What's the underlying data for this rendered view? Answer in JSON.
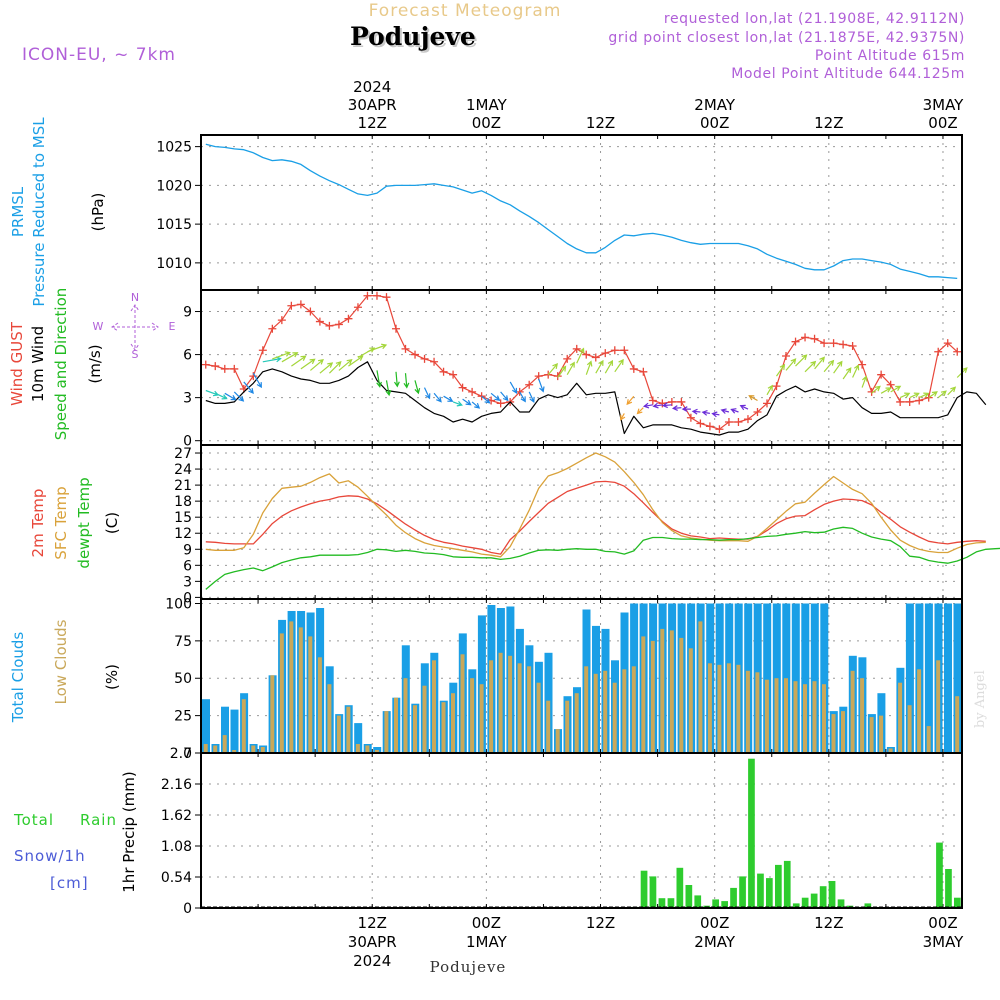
{
  "header": {
    "top_title": "Forecast Meteogram",
    "location": "Podujeve",
    "model": "ICON-EU, ~ 7km",
    "requested": "requested lon,lat (21.1908E, 42.9112N)",
    "grid_point": "grid point closest lon,lat (21.1875E, 42.9375N)",
    "point_alt": "Point Altitude 615m",
    "model_alt": "Model Point Altitude 644.125m",
    "bottom_name": "Podujeve",
    "watermark": "by Angel"
  },
  "colors": {
    "pressure": "#1a9fe6",
    "gust": "#e8473a",
    "wind10m": "#000000",
    "wind_dir": "#22bb22",
    "t2m": "#e8473a",
    "sfc": "#d9a23a",
    "dew": "#22bb22",
    "total_clouds": "#1a9fe6",
    "low_clouds": "#c9a85a",
    "rain": "#2ecc2e",
    "snow": "#4b5bd6",
    "header_purple": "#b05fd8",
    "header_tan": "#e8c98a"
  },
  "time_axis": {
    "year": "2024",
    "top_ticks": [
      {
        "t": 18,
        "l1": "2024",
        "l2": "30APR",
        "l3": "12Z"
      },
      {
        "t": 30,
        "l1": "",
        "l2": "1MAY",
        "l3": "00Z"
      },
      {
        "t": 42,
        "l1": "",
        "l2": "",
        "l3": "12Z"
      },
      {
        "t": 54,
        "l1": "",
        "l2": "2MAY",
        "l3": "00Z"
      },
      {
        "t": 66,
        "l1": "",
        "l2": "",
        "l3": "12Z"
      },
      {
        "t": 78,
        "l1": "",
        "l2": "3MAY",
        "l3": "00Z"
      }
    ],
    "bottom_ticks": [
      {
        "t": 18,
        "l1": "12Z",
        "l2": "30APR",
        "l3": "2024"
      },
      {
        "t": 30,
        "l1": "00Z",
        "l2": "1MAY",
        "l3": ""
      },
      {
        "t": 42,
        "l1": "12Z",
        "l2": "",
        "l3": ""
      },
      {
        "t": 54,
        "l1": "00Z",
        "l2": "2MAY",
        "l3": ""
      },
      {
        "t": 66,
        "l1": "12Z",
        "l2": "",
        "l3": ""
      },
      {
        "t": 78,
        "l1": "00Z",
        "l2": "3MAY",
        "l3": ""
      }
    ]
  },
  "chart_data": [
    {
      "type": "line",
      "panel": "pressure",
      "label_side": [
        "PRMSL",
        "Pressure Reduced to MSL"
      ],
      "ylabel": "(hPa)",
      "ylim": [
        1006.5,
        1026.5
      ],
      "yticks": [
        1010,
        1015,
        1020,
        1025
      ],
      "series": [
        {
          "name": "PRMSL",
          "values": [
            1025.3,
            1025.0,
            1024.9,
            1024.7,
            1024.6,
            1024.2,
            1023.6,
            1023.2,
            1023.3,
            1023.1,
            1022.7,
            1021.9,
            1021.2,
            1020.6,
            1020.1,
            1019.5,
            1018.9,
            1018.7,
            1019.0,
            1019.9,
            1020.0,
            1020.0,
            1020.0,
            1020.1,
            1020.2,
            1020.0,
            1019.8,
            1019.4,
            1019.0,
            1019.3,
            1018.7,
            1018.0,
            1017.5,
            1016.7,
            1016.0,
            1015.2,
            1014.3,
            1013.4,
            1012.5,
            1011.8,
            1011.3,
            1011.3,
            1012.0,
            1012.9,
            1013.6,
            1013.5,
            1013.7,
            1013.8,
            1013.6,
            1013.3,
            1012.9,
            1012.6,
            1012.4,
            1012.5,
            1012.5,
            1012.5,
            1012.5,
            1012.2,
            1011.8,
            1011.1,
            1010.6,
            1010.2,
            1009.8,
            1009.3,
            1009.1,
            1009.1,
            1009.6,
            1010.3,
            1010.5,
            1010.5,
            1010.3,
            1010.1,
            1009.8,
            1009.2,
            1008.9,
            1008.6,
            1008.2,
            1008.2,
            1008.1,
            1008.0
          ]
        }
      ]
    },
    {
      "type": "line",
      "panel": "wind",
      "label_side": [
        "Wind GUST",
        "10m Wind",
        "Speed and Direction"
      ],
      "ylabel": "(m/s)",
      "compass": {
        "n": "N",
        "s": "S",
        "w": "W",
        "e": "E"
      },
      "ylim": [
        -0.3,
        10.5
      ],
      "yticks": [
        0,
        3,
        6,
        9
      ],
      "series": [
        {
          "name": "Wind GUST",
          "values": [
            5.3,
            5.2,
            5.0,
            5.0,
            3.6,
            4.5,
            6.3,
            7.8,
            8.4,
            9.4,
            9.5,
            9.0,
            8.3,
            8.0,
            8.1,
            8.5,
            9.3,
            10.1,
            10.1,
            10.0,
            7.8,
            6.4,
            6.0,
            5.7,
            5.5,
            4.8,
            4.6,
            3.7,
            3.4,
            3.1,
            2.8,
            2.6,
            2.7,
            3.4,
            3.9,
            4.5,
            4.6,
            4.5,
            5.7,
            6.4,
            6.0,
            5.8,
            6.1,
            6.3,
            6.3,
            5.0,
            4.8,
            2.8,
            2.6,
            2.7,
            2.7,
            1.6,
            1.2,
            1.0,
            0.8,
            1.3,
            1.3,
            1.5,
            2.0,
            2.6,
            3.8,
            5.9,
            6.9,
            7.2,
            7.1,
            6.8,
            6.8,
            6.7,
            6.6,
            5.3,
            3.4,
            4.6,
            3.9,
            2.7,
            2.7,
            2.8,
            3.0,
            6.2,
            6.8,
            6.2
          ]
        },
        {
          "name": "10m Wind",
          "values": [
            2.8,
            2.6,
            2.6,
            2.7,
            3.4,
            4.0,
            4.8,
            5.0,
            4.8,
            4.5,
            4.3,
            4.2,
            4.0,
            4.0,
            4.2,
            4.5,
            5.1,
            5.5,
            4.2,
            3.5,
            3.4,
            3.3,
            2.8,
            2.3,
            1.9,
            1.7,
            1.3,
            1.5,
            1.3,
            1.7,
            1.9,
            2.0,
            2.7,
            2.0,
            2.0,
            2.9,
            3.2,
            3.0,
            3.2,
            4.0,
            3.2,
            3.3,
            3.3,
            3.4,
            0.5,
            1.7,
            0.9,
            1.1,
            1.1,
            1.1,
            0.9,
            0.8,
            0.6,
            0.5,
            0.4,
            0.6,
            0.6,
            0.8,
            1.4,
            1.8,
            3.1,
            3.5,
            3.8,
            3.4,
            3.6,
            3.4,
            3.3,
            2.9,
            3.0,
            2.3,
            1.9,
            1.9,
            2.0,
            1.6,
            1.6,
            1.6,
            1.6,
            1.6,
            1.8,
            3.0,
            3.4,
            3.3,
            2.5
          ]
        }
      ],
      "direction_from_deg": [
        290,
        295,
        300,
        315,
        320,
        330,
        260,
        250,
        240,
        235,
        235,
        230,
        230,
        225,
        230,
        235,
        240,
        250,
        350,
        350,
        355,
        355,
        345,
        335,
        320,
        300,
        290,
        305,
        310,
        310,
        310,
        320,
        330,
        330,
        335,
        340,
        220,
        215,
        210,
        205,
        200,
        210,
        210,
        215,
        30,
        40,
        45,
        80,
        80,
        85,
        85,
        90,
        95,
        100,
        100,
        105,
        110,
        115,
        120,
        210,
        215,
        220,
        225,
        225,
        220,
        220,
        215,
        215,
        205,
        200,
        230,
        240,
        240,
        245,
        245,
        245,
        235,
        230,
        225,
        225
      ]
    },
    {
      "type": "line",
      "panel": "temperature",
      "label_side": [
        "2m Temp",
        "SFC Temp",
        "dewpt Temp"
      ],
      "ylabel": "(C)",
      "ylim": [
        -0.3,
        28.5
      ],
      "yticks": [
        0,
        3,
        6,
        9,
        12,
        15,
        18,
        21,
        24,
        27
      ],
      "series": [
        {
          "name": "2m Temp",
          "values": [
            10.4,
            10.3,
            10.1,
            10.0,
            10.0,
            10.0,
            11.8,
            13.8,
            15.2,
            16.2,
            16.9,
            17.5,
            18.0,
            18.3,
            18.8,
            19.0,
            18.9,
            18.4,
            17.5,
            16.3,
            15.0,
            13.7,
            12.6,
            11.6,
            10.8,
            10.3,
            10.0,
            9.6,
            9.3,
            9.0,
            8.4,
            8.1,
            10.8,
            12.4,
            14.2,
            15.9,
            17.6,
            18.7,
            19.8,
            20.4,
            21.0,
            21.6,
            21.7,
            21.5,
            20.8,
            19.4,
            17.7,
            15.9,
            14.2,
            12.8,
            12.0,
            11.5,
            11.3,
            11.0,
            11.1,
            11.0,
            10.9,
            10.9,
            11.4,
            12.5,
            13.8,
            14.7,
            15.2,
            15.3,
            16.4,
            17.4,
            18.0,
            18.4,
            18.3,
            18.1,
            17.3,
            15.9,
            14.6,
            13.2,
            12.2,
            11.3,
            10.5,
            10.2,
            10.0,
            10.3,
            10.5,
            10.6,
            10.5
          ]
        },
        {
          "name": "SFC Temp",
          "values": [
            9.0,
            8.8,
            8.8,
            8.8,
            9.3,
            11.8,
            15.8,
            18.5,
            20.4,
            20.6,
            20.8,
            21.5,
            22.4,
            23.1,
            21.4,
            21.8,
            20.6,
            18.9,
            17.1,
            15.4,
            13.5,
            12.1,
            11.0,
            10.2,
            9.7,
            9.4,
            9.1,
            8.8,
            8.5,
            8.1,
            7.9,
            7.6,
            9.5,
            12.8,
            16.3,
            20.4,
            22.7,
            23.3,
            24.1,
            25.1,
            26.1,
            27.0,
            26.3,
            25.3,
            23.5,
            21.5,
            19.2,
            16.4,
            14.0,
            12.5,
            11.5,
            11.1,
            10.9,
            10.7,
            10.6,
            10.6,
            10.6,
            10.5,
            11.4,
            12.9,
            14.5,
            16.1,
            17.5,
            17.8,
            19.5,
            21.1,
            22.6,
            21.4,
            20.2,
            19.4,
            17.6,
            15.0,
            12.6,
            10.7,
            9.7,
            9.0,
            8.6,
            8.4,
            8.4,
            9.2,
            9.9,
            10.2,
            10.3
          ]
        },
        {
          "name": "dewpt Temp",
          "values": [
            1.5,
            3.0,
            4.3,
            4.8,
            5.2,
            5.5,
            5.0,
            5.7,
            6.5,
            7.0,
            7.4,
            7.6,
            7.9,
            7.9,
            7.9,
            7.9,
            8.0,
            8.4,
            9.0,
            8.9,
            8.6,
            8.8,
            8.6,
            8.3,
            8.2,
            8.0,
            7.6,
            7.5,
            7.5,
            7.4,
            7.4,
            7.1,
            7.3,
            7.7,
            8.3,
            8.8,
            8.9,
            8.8,
            9.0,
            9.1,
            9.0,
            9.0,
            8.6,
            8.5,
            8.1,
            8.7,
            10.7,
            11.2,
            11.2,
            11.0,
            10.9,
            10.9,
            10.8,
            10.8,
            10.7,
            10.8,
            10.8,
            11.0,
            11.2,
            11.4,
            11.5,
            11.8,
            12.0,
            12.3,
            12.1,
            12.2,
            12.8,
            13.1,
            12.9,
            12.0,
            11.3,
            10.9,
            10.6,
            9.5,
            7.7,
            7.5,
            6.9,
            6.6,
            6.4,
            6.8,
            7.5,
            8.5,
            9.0,
            9.1,
            9.2
          ]
        }
      ]
    },
    {
      "type": "bar",
      "panel": "clouds",
      "label_side": [
        "Total Clouds",
        "Low Clouds"
      ],
      "ylabel": "(%)",
      "ylim": [
        0,
        103
      ],
      "yticks": [
        0,
        25,
        50,
        75,
        100
      ],
      "series": [
        {
          "name": "Total Clouds",
          "values": [
            36,
            6,
            31,
            29,
            40,
            6,
            5,
            52,
            89,
            95,
            95,
            94,
            97,
            58,
            26,
            32,
            20,
            6,
            4,
            28,
            37,
            72,
            33,
            60,
            67,
            35,
            47,
            80,
            56,
            92,
            99,
            97,
            98,
            83,
            72,
            61,
            67,
            16,
            38,
            44,
            96,
            85,
            83,
            62,
            94,
            100,
            100,
            100,
            100,
            100,
            100,
            100,
            100,
            100,
            100,
            100,
            100,
            100,
            100,
            100,
            100,
            100,
            100,
            100,
            100,
            100,
            28,
            31,
            65,
            64,
            26,
            40,
            4,
            57,
            100,
            100,
            100,
            100,
            100,
            100
          ]
        },
        {
          "name": "Low Clouds",
          "values": [
            6,
            5,
            12,
            2,
            36,
            5,
            4,
            52,
            80,
            88,
            84,
            78,
            64,
            46,
            25,
            31,
            6,
            5,
            2,
            28,
            37,
            50,
            32,
            45,
            62,
            34,
            40,
            66,
            50,
            46,
            62,
            67,
            65,
            60,
            58,
            47,
            35,
            16,
            35,
            40,
            58,
            53,
            55,
            47,
            56,
            58,
            78,
            75,
            83,
            82,
            77,
            70,
            88,
            60,
            59,
            60,
            59,
            55,
            54,
            49,
            50,
            50,
            48,
            46,
            48,
            46,
            26,
            28,
            55,
            50,
            24,
            25,
            3,
            47,
            32,
            56,
            18,
            62,
            0,
            38
          ]
        }
      ]
    },
    {
      "type": "bar",
      "panel": "precip",
      "label_side": [
        "Total",
        "Rain",
        "Snow/1h",
        "[cm]"
      ],
      "ylabel": "1hr Precip (mm)",
      "ylim": [
        0,
        2.7
      ],
      "yticks": [
        0,
        0.54,
        1.08,
        1.62,
        2.16,
        2.7
      ],
      "ytick_labels": [
        "0",
        "0.54",
        "1.08",
        "1.62",
        "2.16",
        "2.7"
      ],
      "series": [
        {
          "name": "Rain",
          "values": [
            0,
            0,
            0,
            0,
            0,
            0,
            0,
            0,
            0,
            0,
            0,
            0,
            0,
            0,
            0,
            0,
            0,
            0,
            0,
            0,
            0,
            0,
            0,
            0,
            0,
            0,
            0,
            0,
            0,
            0,
            0,
            0,
            0,
            0,
            0,
            0,
            0,
            0,
            0,
            0,
            0,
            0,
            0,
            0,
            0,
            0,
            0,
            0,
            0.02,
            0.65,
            0.55,
            0.17,
            0.17,
            0.7,
            0.4,
            0.22,
            0.04,
            0.15,
            0.12,
            0.35,
            0.55,
            2.6,
            0.6,
            0.52,
            0.75,
            0.82,
            0.08,
            0.18,
            0.25,
            0.38,
            0.47,
            0.15,
            0.04,
            0.02,
            0.08,
            0,
            0,
            0,
            0,
            0,
            0,
            0,
            1.14,
            0.68,
            0.18
          ]
        }
      ]
    }
  ]
}
